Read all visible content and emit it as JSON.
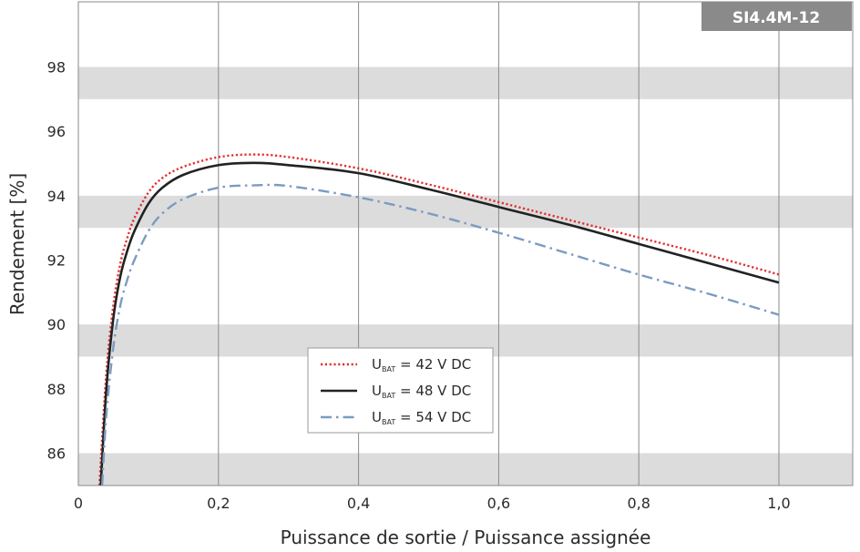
{
  "chart_data": {
    "type": "line",
    "title": "SI4.4M-12",
    "xlabel": "Puissance de sortie / Puissance assignée",
    "ylabel": "Rendement [%]",
    "xlim": [
      0,
      1.1
    ],
    "ylim": [
      85,
      100
    ],
    "xticks": [
      0,
      0.2,
      0.4,
      0.6,
      0.8,
      1.0
    ],
    "xtick_labels": [
      "0",
      "0,2",
      "0,4",
      "0,6",
      "0,8",
      "1,0"
    ],
    "yticks": [
      86,
      88,
      90,
      92,
      94,
      96,
      98
    ],
    "ytick_labels": [
      "86",
      "88",
      "90",
      "92",
      "94",
      "96",
      "98"
    ],
    "grid": "vertical lines and alternating horizontal bands",
    "legend_position": "lower-center",
    "band_color": "#dcdcdc",
    "series": [
      {
        "name": "U_BAT = 42 V DC",
        "legend": {
          "prefix": "U",
          "sub": "BAT",
          "suffix": " = 42 V DC"
        },
        "color": "#e2302f",
        "dash": "dotted",
        "x": [
          0.03,
          0.04,
          0.05,
          0.06,
          0.07,
          0.08,
          0.1,
          0.12,
          0.15,
          0.2,
          0.25,
          0.3,
          0.4,
          0.5,
          0.6,
          0.7,
          0.8,
          0.9,
          1.0
        ],
        "y": [
          85.0,
          88.5,
          90.6,
          91.9,
          92.7,
          93.3,
          94.1,
          94.55,
          94.9,
          95.2,
          95.28,
          95.2,
          94.85,
          94.35,
          93.8,
          93.25,
          92.7,
          92.15,
          91.55
        ]
      },
      {
        "name": "U_BAT = 48 V DC",
        "legend": {
          "prefix": "U",
          "sub": "BAT",
          "suffix": " = 48 V DC"
        },
        "color": "#222222",
        "dash": "solid",
        "x": [
          0.032,
          0.04,
          0.05,
          0.06,
          0.07,
          0.08,
          0.1,
          0.12,
          0.15,
          0.2,
          0.25,
          0.3,
          0.4,
          0.5,
          0.6,
          0.7,
          0.8,
          0.9,
          1.0
        ],
        "y": [
          85.0,
          88.0,
          90.2,
          91.5,
          92.3,
          92.9,
          93.75,
          94.25,
          94.65,
          94.95,
          95.02,
          94.95,
          94.7,
          94.2,
          93.65,
          93.1,
          92.5,
          91.9,
          91.3
        ]
      },
      {
        "name": "U_BAT = 54 V DC",
        "legend": {
          "prefix": "U",
          "sub": "BAT",
          "suffix": " = 54 V DC"
        },
        "color": "#7b9bc1",
        "dash": "dash-dot",
        "x": [
          0.034,
          0.04,
          0.05,
          0.06,
          0.07,
          0.08,
          0.1,
          0.12,
          0.15,
          0.2,
          0.25,
          0.3,
          0.4,
          0.5,
          0.6,
          0.7,
          0.8,
          0.9,
          1.0
        ],
        "y": [
          85.0,
          87.2,
          89.3,
          90.6,
          91.4,
          92.0,
          92.9,
          93.45,
          93.9,
          94.25,
          94.32,
          94.3,
          93.95,
          93.45,
          92.85,
          92.2,
          91.55,
          90.95,
          90.3
        ]
      }
    ]
  }
}
